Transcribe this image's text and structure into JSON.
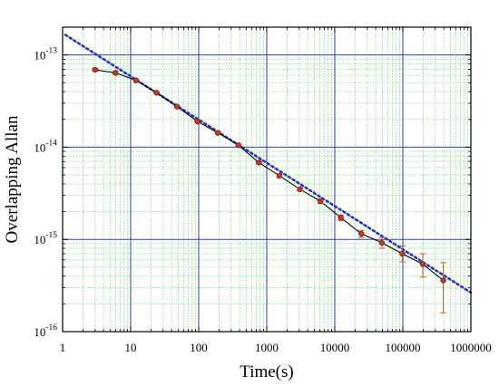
{
  "chart_data": {
    "type": "line",
    "xlabel": "Time(s)",
    "ylabel": "Overlapping Allan",
    "x_scale": "log",
    "y_scale": "log",
    "xlim": [
      1,
      1000000
    ],
    "ylim": [
      1e-16,
      2e-13
    ],
    "x_ticks": [
      {
        "value": 1,
        "label": "1"
      },
      {
        "value": 10,
        "label": "10"
      },
      {
        "value": 100,
        "label": "100"
      },
      {
        "value": 1000,
        "label": "1000"
      },
      {
        "value": 10000,
        "label": "10000"
      },
      {
        "value": 100000,
        "label": "100000"
      },
      {
        "value": 1000000,
        "label": "1000000"
      }
    ],
    "y_ticks": [
      {
        "value": 1e-13,
        "base": "10",
        "exp": "-13"
      },
      {
        "value": 1e-14,
        "base": "10",
        "exp": "-14"
      },
      {
        "value": 1e-15,
        "base": "10",
        "exp": "-15"
      },
      {
        "value": 1e-16,
        "base": "10",
        "exp": "-16"
      }
    ],
    "grid": true,
    "series": [
      {
        "style": "line-markers-errorbars",
        "points": [
          {
            "x": 3,
            "y": 6.9e-14,
            "err_low": 6.7e-14,
            "err_high": 7.1e-14
          },
          {
            "x": 6,
            "y": 6.4e-14,
            "err_low": 6.2e-14,
            "err_high": 6.6e-14
          },
          {
            "x": 12,
            "y": 5.3e-14,
            "err_low": 5.2e-14,
            "err_high": 5.4e-14
          },
          {
            "x": 24,
            "y": 3.9e-14,
            "err_low": 3.8e-14,
            "err_high": 4e-14
          },
          {
            "x": 48,
            "y": 2.75e-14,
            "err_low": 2.7e-14,
            "err_high": 2.8e-14
          },
          {
            "x": 96,
            "y": 1.9e-14,
            "err_low": 1.86e-14,
            "err_high": 1.94e-14
          },
          {
            "x": 192,
            "y": 1.43e-14,
            "err_low": 1.4e-14,
            "err_high": 1.46e-14
          },
          {
            "x": 384,
            "y": 1.05e-14,
            "err_low": 1.02e-14,
            "err_high": 1.08e-14
          },
          {
            "x": 768,
            "y": 6.8e-15,
            "err_low": 6.6e-15,
            "err_high": 7e-15
          },
          {
            "x": 1536,
            "y": 4.9e-15,
            "err_low": 4.7e-15,
            "err_high": 5.1e-15
          },
          {
            "x": 3072,
            "y": 3.5e-15,
            "err_low": 3.35e-15,
            "err_high": 3.65e-15
          },
          {
            "x": 6144,
            "y": 2.6e-15,
            "err_low": 2.45e-15,
            "err_high": 2.75e-15
          },
          {
            "x": 12288,
            "y": 1.72e-15,
            "err_low": 1.6e-15,
            "err_high": 1.84e-15
          },
          {
            "x": 24576,
            "y": 1.15e-15,
            "err_low": 1.05e-15,
            "err_high": 1.25e-15
          },
          {
            "x": 49152,
            "y": 9.2e-16,
            "err_low": 8e-16,
            "err_high": 1.05e-15
          },
          {
            "x": 98304,
            "y": 7e-16,
            "err_low": 5.7e-16,
            "err_high": 8.5e-16
          },
          {
            "x": 196608,
            "y": 5.4e-16,
            "err_low": 3.9e-16,
            "err_high": 7e-16
          },
          {
            "x": 393216,
            "y": 3.6e-16,
            "err_low": 1.6e-16,
            "err_high": 5.6e-16
          }
        ]
      },
      {
        "style": "dotted-fit",
        "points": [
          {
            "x": 1.1,
            "y": 1.65e-13
          },
          {
            "x": 1000000,
            "y": 2.65e-16
          }
        ]
      }
    ],
    "colors": {
      "plot_border": "#000000",
      "major_grid": "#2b3fbf",
      "minor_grid": "#7ddc7d",
      "data_line": "#000000",
      "marker": "#c0392b",
      "marker_edge": "#7a1f10",
      "errorbar": "#b5651d",
      "fit_line": "#2435c4"
    }
  }
}
